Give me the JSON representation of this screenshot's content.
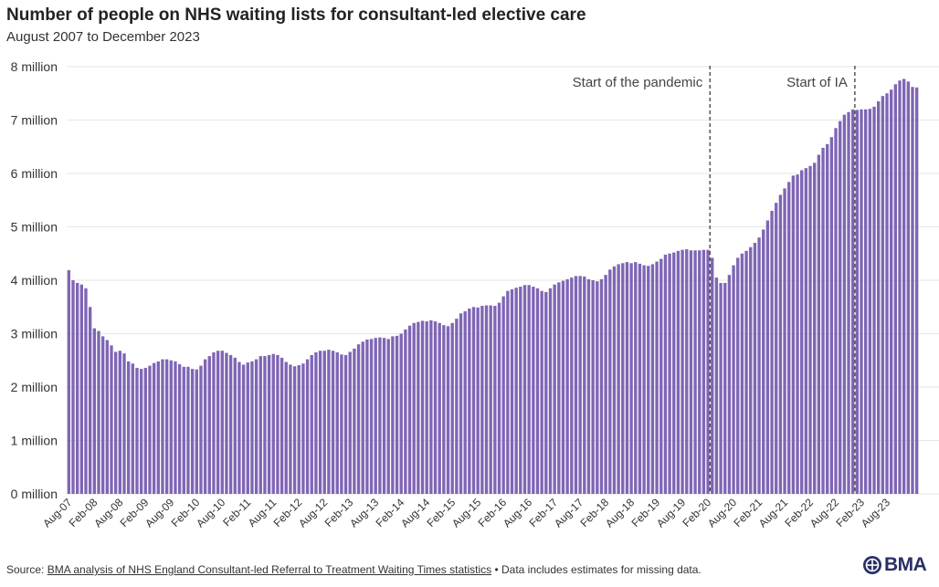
{
  "title": "Number of people on NHS waiting lists for consultant-led elective care",
  "subtitle": "August 2007 to December 2023",
  "footer": {
    "source_prefix": "Source: ",
    "source_link": "BMA analysis of NHS England Consultant-led Referral to Treatment Waiting Times statistics",
    "note": " • Data includes estimates for missing data."
  },
  "logo": {
    "text": "BMA"
  },
  "colors": {
    "bar": "#7f65b5",
    "grid": "#e6e6e6",
    "annotation_line": "#555555"
  },
  "chart_data": {
    "type": "bar",
    "title": "Number of people on NHS waiting lists for consultant-led elective care",
    "subtitle": "August 2007 to December 2023",
    "xlabel": "",
    "ylabel": "",
    "ylim": [
      0,
      8
    ],
    "y_unit": "million",
    "y_ticks": [
      0,
      1,
      2,
      3,
      4,
      5,
      6,
      7,
      8
    ],
    "y_tick_labels": [
      "0 million",
      "1 million",
      "2 million",
      "3 million",
      "4 million",
      "5 million",
      "6 million",
      "7 million",
      "8 million"
    ],
    "grid": true,
    "x_tick_labels": [
      "Aug-07",
      "Feb-08",
      "Aug-08",
      "Feb-09",
      "Aug-09",
      "Feb-10",
      "Aug-10",
      "Feb-11",
      "Aug-11",
      "Feb-12",
      "Aug-12",
      "Feb-13",
      "Aug-13",
      "Feb-14",
      "Aug-14",
      "Feb-15",
      "Aug-15",
      "Feb-16",
      "Aug-16",
      "Feb-17",
      "Aug-17",
      "Feb-18",
      "Aug-18",
      "Feb-19",
      "Aug-19",
      "Feb-20",
      "Aug-20",
      "Feb-21",
      "Aug-21",
      "Feb-22",
      "Aug-22",
      "Feb-23",
      "Aug-23"
    ],
    "x_start": "Aug-07",
    "annotations": [
      {
        "label": "Start of the pandemic",
        "at": "Mar-20"
      },
      {
        "label": "Start of IA",
        "at": "Jan-23"
      }
    ],
    "values": [
      4.19,
      4.0,
      3.95,
      3.92,
      3.85,
      3.5,
      3.1,
      3.05,
      2.95,
      2.88,
      2.78,
      2.66,
      2.68,
      2.63,
      2.48,
      2.44,
      2.36,
      2.34,
      2.36,
      2.4,
      2.45,
      2.48,
      2.52,
      2.52,
      2.5,
      2.48,
      2.43,
      2.38,
      2.38,
      2.34,
      2.33,
      2.4,
      2.52,
      2.58,
      2.65,
      2.68,
      2.68,
      2.64,
      2.6,
      2.55,
      2.47,
      2.42,
      2.46,
      2.48,
      2.52,
      2.58,
      2.58,
      2.6,
      2.62,
      2.6,
      2.55,
      2.47,
      2.42,
      2.39,
      2.41,
      2.44,
      2.52,
      2.6,
      2.65,
      2.68,
      2.68,
      2.7,
      2.68,
      2.65,
      2.61,
      2.6,
      2.66,
      2.72,
      2.8,
      2.85,
      2.89,
      2.9,
      2.92,
      2.93,
      2.92,
      2.9,
      2.95,
      2.96,
      3.0,
      3.08,
      3.15,
      3.2,
      3.22,
      3.24,
      3.23,
      3.25,
      3.23,
      3.2,
      3.16,
      3.14,
      3.2,
      3.28,
      3.38,
      3.42,
      3.47,
      3.5,
      3.49,
      3.52,
      3.53,
      3.53,
      3.52,
      3.58,
      3.7,
      3.8,
      3.83,
      3.86,
      3.88,
      3.91,
      3.91,
      3.88,
      3.85,
      3.8,
      3.78,
      3.85,
      3.92,
      3.96,
      3.99,
      4.02,
      4.05,
      4.08,
      4.08,
      4.07,
      4.02,
      4.0,
      3.98,
      4.02,
      4.1,
      4.2,
      4.26,
      4.3,
      4.32,
      4.34,
      4.32,
      4.34,
      4.31,
      4.28,
      4.27,
      4.3,
      4.35,
      4.4,
      4.48,
      4.5,
      4.52,
      4.55,
      4.57,
      4.58,
      4.56,
      4.56,
      4.56,
      4.57,
      4.57,
      4.42,
      4.05,
      3.95,
      3.95,
      4.1,
      4.28,
      4.42,
      4.5,
      4.55,
      4.62,
      4.7,
      4.8,
      4.95,
      5.12,
      5.3,
      5.45,
      5.6,
      5.72,
      5.84,
      5.96,
      5.98,
      6.06,
      6.1,
      6.14,
      6.2,
      6.35,
      6.48,
      6.55,
      6.68,
      6.85,
      6.98,
      7.1,
      7.15,
      7.2,
      7.19,
      7.2,
      7.2,
      7.21,
      7.25,
      7.35,
      7.45,
      7.5,
      7.57,
      7.67,
      7.74,
      7.77,
      7.72,
      7.62,
      7.61
    ]
  }
}
